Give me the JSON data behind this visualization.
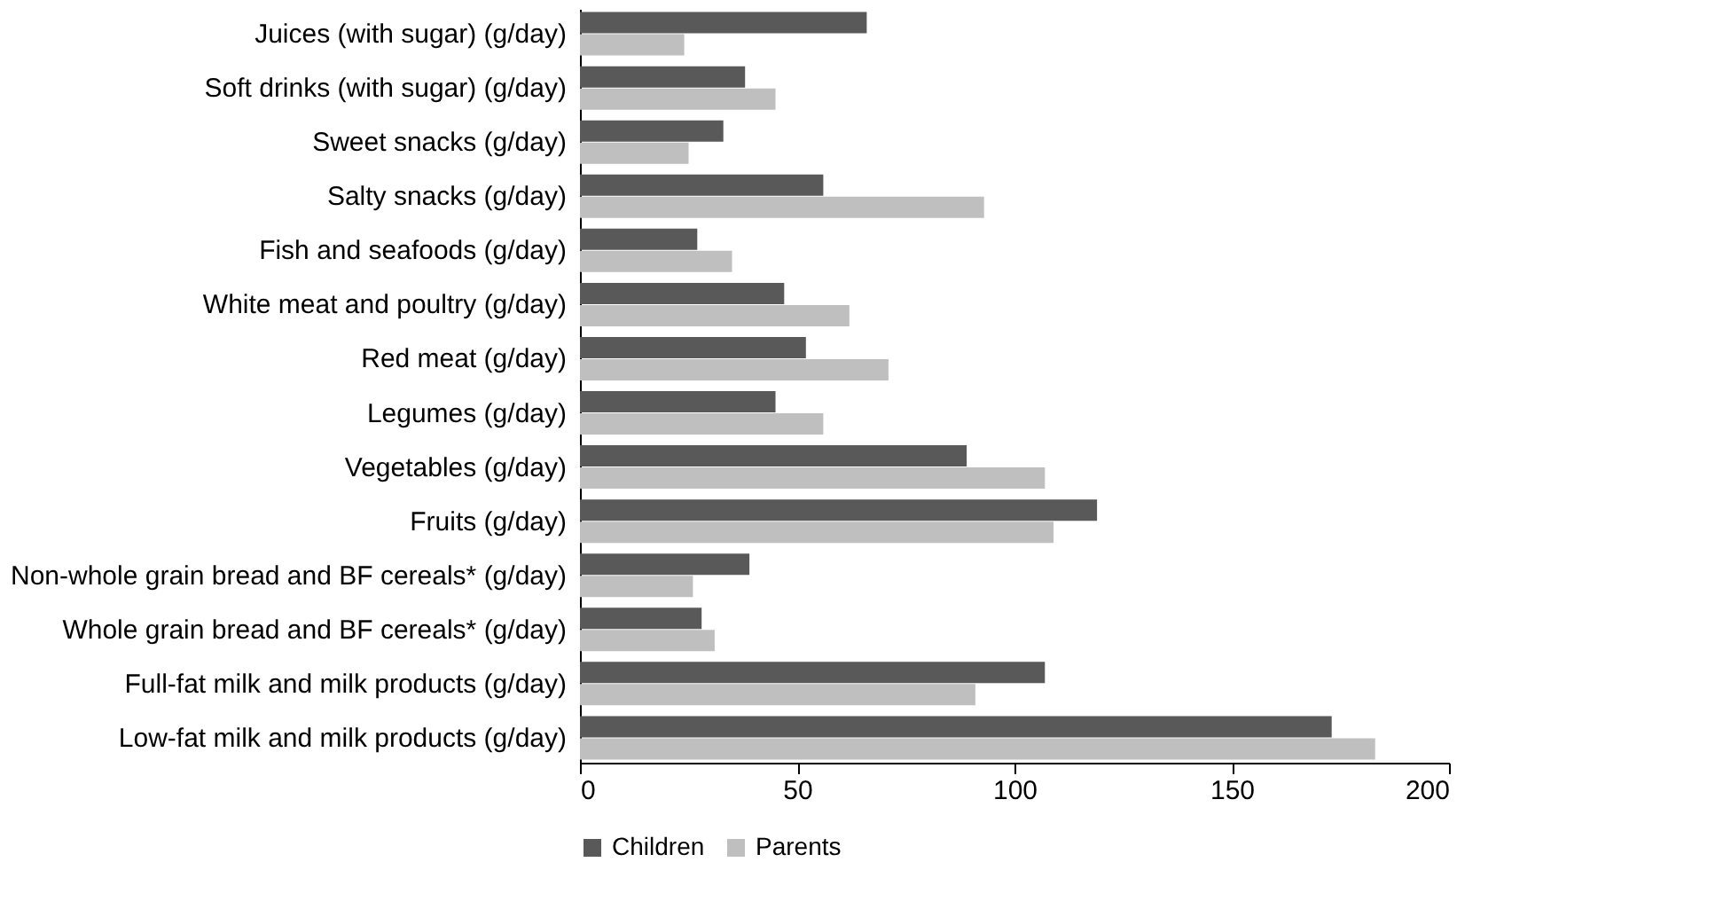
{
  "chart_data": {
    "type": "bar",
    "orientation": "horizontal",
    "categories": [
      "Juices (with sugar) (g/day)",
      "Soft drinks (with sugar) (g/day)",
      "Sweet snacks (g/day)",
      "Salty snacks (g/day)",
      "Fish and seafoods (g/day)",
      "White meat and poultry (g/day)",
      "Red meat (g/day)",
      "Legumes (g/day)",
      "Vegetables (g/day)",
      "Fruits (g/day)",
      "Non-whole grain bread and BF cereals* (g/day)",
      "Whole grain bread and BF cereals* (g/day)",
      "Full-fat milk and milk products (g/day)",
      "Low-fat milk and milk products (g/day)"
    ],
    "series": [
      {
        "name": "Children",
        "color": "#595959",
        "values": [
          66,
          38,
          33,
          56,
          27,
          47,
          52,
          45,
          89,
          119,
          39,
          28,
          107,
          173
        ]
      },
      {
        "name": "Parents",
        "color": "#bfbfbf",
        "values": [
          24,
          45,
          25,
          93,
          35,
          62,
          71,
          56,
          107,
          109,
          26,
          31,
          91,
          183
        ]
      }
    ],
    "xlim": [
      0,
      200
    ],
    "xticks": [
      0,
      50,
      100,
      150,
      200
    ],
    "grid": false,
    "legend": "bottom"
  }
}
